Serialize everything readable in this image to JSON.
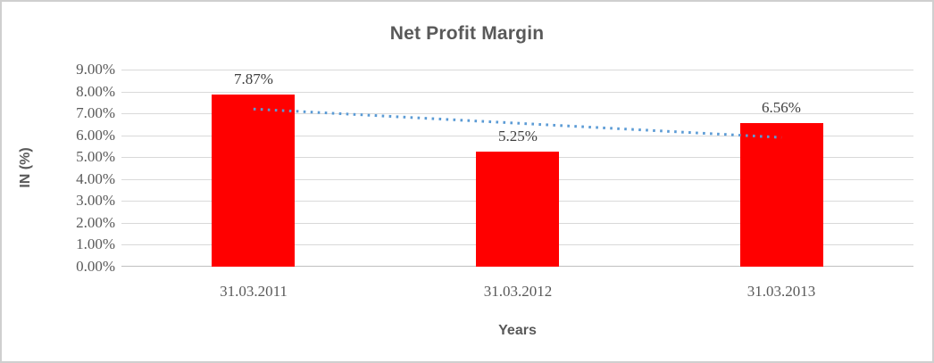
{
  "chart_data": {
    "type": "bar",
    "title": "Net Profit Margin",
    "categories": [
      "31.03.2011",
      "31.03.2012",
      "31.03.2013"
    ],
    "values": [
      7.87,
      5.25,
      6.56
    ],
    "data_labels": [
      "7.87%",
      "5.25%",
      "6.56%"
    ],
    "xlabel": "Years",
    "ylabel": "IN (%)",
    "ylim": [
      0,
      9
    ],
    "ytick_step": 1,
    "ytick_labels": [
      "0.00%",
      "1.00%",
      "2.00%",
      "3.00%",
      "4.00%",
      "5.00%",
      "6.00%",
      "7.00%",
      "8.00%",
      "9.00%"
    ],
    "grid": true,
    "legend": false,
    "bar_color": "#ff0000",
    "trendline": {
      "type": "linear",
      "style": "dotted",
      "color": "#5b9bd5",
      "start_value": 7.2,
      "end_value": 5.9
    },
    "colors": {
      "title_text": "#595959",
      "axis_text": "#595959",
      "data_label_text": "#404040",
      "gridline": "#d9d9d9",
      "axis_line": "#bfbfbf",
      "border": "#cfcfcf"
    }
  }
}
